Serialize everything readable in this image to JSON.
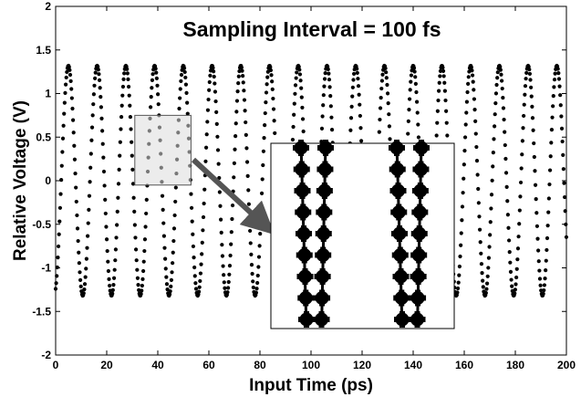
{
  "chart_data": {
    "type": "scatter",
    "title": "Sampling Interval = 100 fs",
    "xlabel": "Input Time (ps)",
    "ylabel": "Relative Voltage (V)",
    "xlim": [
      0,
      200
    ],
    "ylim": [
      -2,
      2
    ],
    "xticks": [
      "0",
      "20",
      "40",
      "60",
      "80",
      "100",
      "120",
      "140",
      "160",
      "180",
      "200"
    ],
    "yticks": [
      "2",
      "1.5",
      "1",
      "0.5",
      "0",
      "-0.5",
      "-1",
      "-1.5",
      "-2"
    ],
    "grid": false,
    "legend": "none",
    "series": [
      {
        "marker": "filled-circle",
        "color": "#000000",
        "waveform": "sine",
        "amplitude": 1.32,
        "period_ps": 11.25,
        "peak_at_ps": 5.0,
        "x_start": 0,
        "x_end": 200
      }
    ],
    "inset": {
      "zoom_region_x": [
        31,
        53
      ],
      "zoom_region_y": [
        -0.05,
        0.75
      ],
      "content": "magnified view of discrete sample points along the waveform"
    }
  }
}
